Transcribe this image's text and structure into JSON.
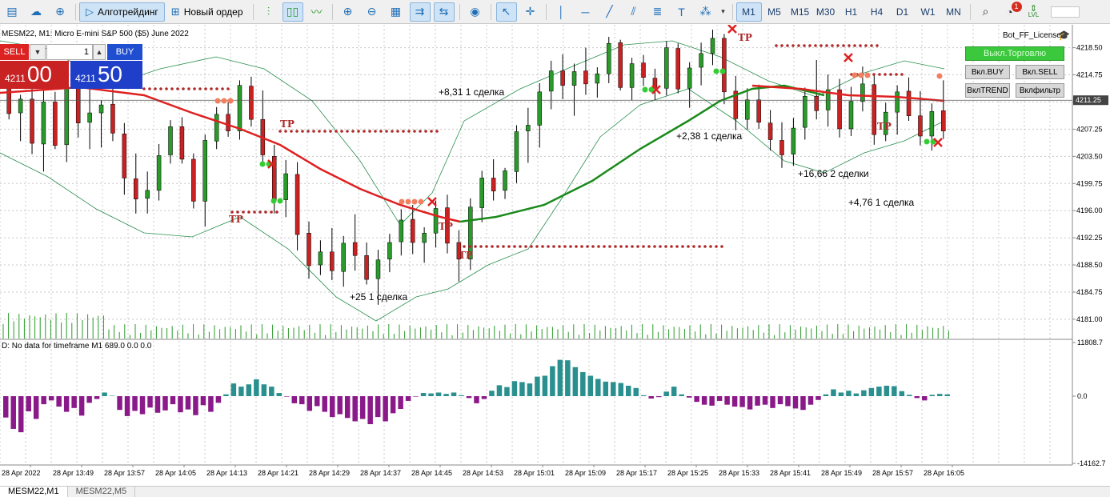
{
  "toolbar": {
    "algo_label": "Алготрейдинг",
    "new_order_label": "Новый ордер",
    "timeframes": [
      "M1",
      "M5",
      "M15",
      "M30",
      "H1",
      "H4",
      "D1",
      "W1",
      "MN"
    ],
    "active_timeframe": "M1",
    "notification_count": "1",
    "level_label": "LVL"
  },
  "chart": {
    "title": "MESM22, M1:  Micro E-mini S&P 500 ($5) June 2022",
    "indicator_label": "D: No data for timeframe M1 689.0 0.0 0.0",
    "current_price": "4211.25",
    "price_ticks": [
      "4218.50",
      "4214.75",
      "4211.00",
      "4207.25",
      "4203.50",
      "4199.75",
      "4196.00",
      "4192.25",
      "4188.50",
      "4184.75",
      "4181.00"
    ],
    "indicator_ticks": [
      "11808.7",
      "0.0",
      "-14162.7"
    ],
    "time_labels": [
      "28 Apr 2022",
      "28 Apr 13:49",
      "28 Apr 13:57",
      "28 Apr 14:05",
      "28 Apr 14:13",
      "28 Apr 14:21",
      "28 Apr 14:29",
      "28 Apr 14:37",
      "28 Apr 14:45",
      "28 Apr 14:53",
      "28 Apr 15:01",
      "28 Apr 15:09",
      "28 Apr 15:17",
      "28 Apr 15:25",
      "28 Apr 15:33",
      "28 Apr 15:41",
      "28 Apr 15:49",
      "28 Apr 15:57",
      "28 Apr 16:05"
    ],
    "annotations": [
      "+8,31  1 сделка",
      "+2,38  1 сделка",
      "+16,66  2 сделки",
      "+4,76  1 сделка",
      "+25  1 сделка"
    ],
    "tp_label": "TP"
  },
  "trade_panel": {
    "sell_label": "SELL",
    "buy_label": "BUY",
    "lot": "1",
    "sell_price_small": "4211",
    "sell_price_big": "00",
    "buy_price_small": "4211",
    "buy_price_big": "50"
  },
  "bot": {
    "license_label": "Bot_FF_License",
    "toggle_label": "Выкл.Торговлю",
    "buy_label": "Вкл.BUY",
    "sell_label": "Вкл.SELL",
    "trend_label": "ВклTREND",
    "filter_label": "Вклфильтр"
  },
  "tabs": [
    "MESM22,M1",
    "MESM22,M5"
  ],
  "colors": {
    "bull": "#2a9a2a",
    "bear": "#c92222",
    "ma_red": "#e02020",
    "ma_green": "#1a8a1a",
    "hist_up": "#2a8f8f",
    "hist_down": "#8a1a8a"
  },
  "chart_data": {
    "type": "candlestick",
    "y_range": [
      4179,
      4221
    ],
    "ohlc": [
      [
        4213.2,
        4214.1,
        4208.6,
        4209.4
      ],
      [
        4209.5,
        4212.0,
        4205.6,
        4211.4
      ],
      [
        4211.4,
        4213.3,
        4203.8,
        4205.3
      ],
      [
        4205.2,
        4213.6,
        4201.4,
        4211.0
      ],
      [
        4211.0,
        4212.4,
        4204.5,
        4205.0
      ],
      [
        4205.1,
        4214.6,
        4202.7,
        4213.1
      ],
      [
        4213.3,
        4215.9,
        4206.1,
        4208.1
      ],
      [
        4208.2,
        4213.9,
        4204.5,
        4209.5
      ],
      [
        4209.5,
        4211.2,
        4204.7,
        4210.6
      ],
      [
        4210.7,
        4213.7,
        4205.6,
        4206.7
      ],
      [
        4206.6,
        4208.1,
        4198.2,
        4200.5
      ],
      [
        4200.4,
        4203.9,
        4195.6,
        4197.6
      ],
      [
        4197.7,
        4201.4,
        4195.6,
        4198.8
      ],
      [
        4198.8,
        4205.2,
        4197.4,
        4203.6
      ],
      [
        4203.7,
        4208.5,
        4202.5,
        4207.6
      ],
      [
        4207.6,
        4208.9,
        4202.5,
        4203.1
      ],
      [
        4203.1,
        4203.9,
        4196.3,
        4197.3
      ],
      [
        4197.3,
        4206.5,
        4193.8,
        4205.7
      ],
      [
        4205.6,
        4210.3,
        4204.5,
        4209.3
      ],
      [
        4209.3,
        4211.3,
        4206.2,
        4207.0
      ],
      [
        4207.0,
        4214.0,
        4205.8,
        4213.3
      ],
      [
        4213.2,
        4214.5,
        4207.6,
        4208.6
      ],
      [
        4208.6,
        4212.6,
        4202.5,
        4203.7
      ],
      [
        4203.5,
        4205.1,
        4195.6,
        4197.4
      ],
      [
        4197.5,
        4203.0,
        4195.1,
        4201.1
      ],
      [
        4201.0,
        4202.7,
        4190.5,
        4192.7
      ],
      [
        4192.9,
        4194.5,
        4186.6,
        4188.4
      ],
      [
        4188.5,
        4191.9,
        4187.1,
        4190.3
      ],
      [
        4190.3,
        4193.6,
        4186.4,
        4187.7
      ],
      [
        4187.6,
        4192.5,
        4185.5,
        4191.5
      ],
      [
        4191.6,
        4195.5,
        4187.7,
        4189.8
      ],
      [
        4189.8,
        4191.6,
        4185.8,
        4186.5
      ],
      [
        4186.6,
        4190.6,
        4183.0,
        4189.2
      ],
      [
        4189.3,
        4192.8,
        4187.5,
        4191.6
      ],
      [
        4191.7,
        4196.2,
        4189.8,
        4194.7
      ],
      [
        4194.8,
        4196.8,
        4190.0,
        4191.6
      ],
      [
        4191.6,
        4193.7,
        4188.8,
        4192.9
      ],
      [
        4192.9,
        4197.4,
        4190.9,
        4196.3
      ],
      [
        4196.4,
        4198.2,
        4190.1,
        4191.5
      ],
      [
        4191.6,
        4193.3,
        4186.2,
        4189.3
      ],
      [
        4189.3,
        4197.7,
        4187.8,
        4196.5
      ],
      [
        4196.4,
        4201.5,
        4194.4,
        4200.5
      ],
      [
        4200.5,
        4203.1,
        4197.4,
        4198.7
      ],
      [
        4198.8,
        4201.9,
        4197.6,
        4201.5
      ],
      [
        4201.4,
        4207.8,
        4199.8,
        4206.9
      ],
      [
        4207.0,
        4210.2,
        4202.6,
        4207.8
      ],
      [
        4207.8,
        4213.6,
        4204.7,
        4212.4
      ],
      [
        4212.5,
        4216.7,
        4210.0,
        4215.3
      ],
      [
        4215.3,
        4217.6,
        4211.4,
        4213.3
      ],
      [
        4213.3,
        4216.3,
        4209.1,
        4215.2
      ],
      [
        4215.3,
        4218.5,
        4212.0,
        4213.5
      ],
      [
        4213.6,
        4215.8,
        4211.6,
        4214.9
      ],
      [
        4214.9,
        4220.0,
        4213.6,
        4219.1
      ],
      [
        4219.2,
        4219.6,
        4212.6,
        4213.0
      ],
      [
        4213.0,
        4217.1,
        4211.2,
        4216.3
      ],
      [
        4216.4,
        4217.5,
        4213.2,
        4214.4
      ],
      [
        4214.3,
        4215.6,
        4211.2,
        4212.9
      ],
      [
        4212.9,
        4219.4,
        4211.9,
        4218.5
      ],
      [
        4218.4,
        4219.1,
        4212.2,
        4212.8
      ],
      [
        4212.9,
        4216.5,
        4210.2,
        4215.7
      ],
      [
        4215.8,
        4219.2,
        4213.3,
        4217.7
      ],
      [
        4217.7,
        4221.0,
        4216.1,
        4219.8
      ],
      [
        4219.8,
        4220.4,
        4210.7,
        4212.4
      ],
      [
        4212.5,
        4214.6,
        4207.1,
        4208.7
      ],
      [
        4208.6,
        4212.9,
        4207.2,
        4211.3
      ],
      [
        4211.3,
        4213.4,
        4207.3,
        4208.2
      ],
      [
        4208.1,
        4209.9,
        4204.3,
        4205.8
      ],
      [
        4205.7,
        4208.2,
        4201.9,
        4203.7
      ],
      [
        4203.8,
        4208.8,
        4202.2,
        4207.4
      ],
      [
        4207.5,
        4213.0,
        4205.8,
        4211.8
      ],
      [
        4211.8,
        4216.8,
        4208.6,
        4209.8
      ],
      [
        4209.9,
        4214.8,
        4207.6,
        4212.7
      ],
      [
        4212.7,
        4214.2,
        4206.1,
        4207.3
      ],
      [
        4207.3,
        4213.1,
        4206.3,
        4211.1
      ],
      [
        4211.1,
        4215.9,
        4209.7,
        4213.5
      ],
      [
        4213.4,
        4214.8,
        4205.1,
        4206.5
      ],
      [
        4206.5,
        4210.9,
        4205.6,
        4209.6
      ],
      [
        4209.6,
        4213.3,
        4206.5,
        4212.4
      ],
      [
        4212.5,
        4214.4,
        4208.4,
        4209.1
      ],
      [
        4209.1,
        4212.5,
        4205.0,
        4206.3
      ],
      [
        4206.3,
        4210.8,
        4204.3,
        4209.7
      ],
      [
        4209.8,
        4214.0,
        4205.9,
        4207.0
      ]
    ],
    "hist_values": [
      -4500,
      -6900,
      -7600,
      -3200,
      -4800,
      -1700,
      -900,
      -2200,
      -3300,
      -2500,
      -4100,
      -1400,
      -600,
      800,
      100,
      -2900,
      -4200,
      -3100,
      -3800,
      -2400,
      -3500,
      -3000,
      -1700,
      -3400,
      -2800,
      -4000,
      -1900,
      -3300,
      -1400,
      400,
      2800,
      2100,
      2600,
      3700,
      2600,
      2100,
      700,
      -100,
      -1500,
      -1700,
      -3100,
      -2100,
      -3300,
      -4400,
      -3800,
      -4600,
      -5300,
      -4800,
      -5900,
      -4400,
      -5300,
      -3600,
      -2700,
      -1000,
      -100,
      700,
      600,
      800,
      500,
      800,
      200,
      -400,
      -1500,
      -600,
      1200,
      2400,
      2000,
      3300,
      3100,
      2800,
      4300,
      4500,
      6600,
      8000,
      7900,
      6400,
      5300,
      4500,
      3800,
      3200,
      3100,
      2900,
      2300,
      1800,
      200,
      -500,
      -200,
      1000,
      2100,
      400,
      -300,
      -1200,
      -1800,
      -2000,
      -1000,
      -1800,
      -2200,
      -2300,
      -2800,
      -2000,
      -1800,
      -2500,
      -1700,
      -2100,
      -2600,
      -2900,
      -1800,
      -800,
      400,
      1500,
      800,
      1200,
      600,
      1300,
      1800,
      2100,
      2300,
      2200,
      1100,
      300,
      -400,
      -900,
      300,
      500,
      400
    ]
  }
}
